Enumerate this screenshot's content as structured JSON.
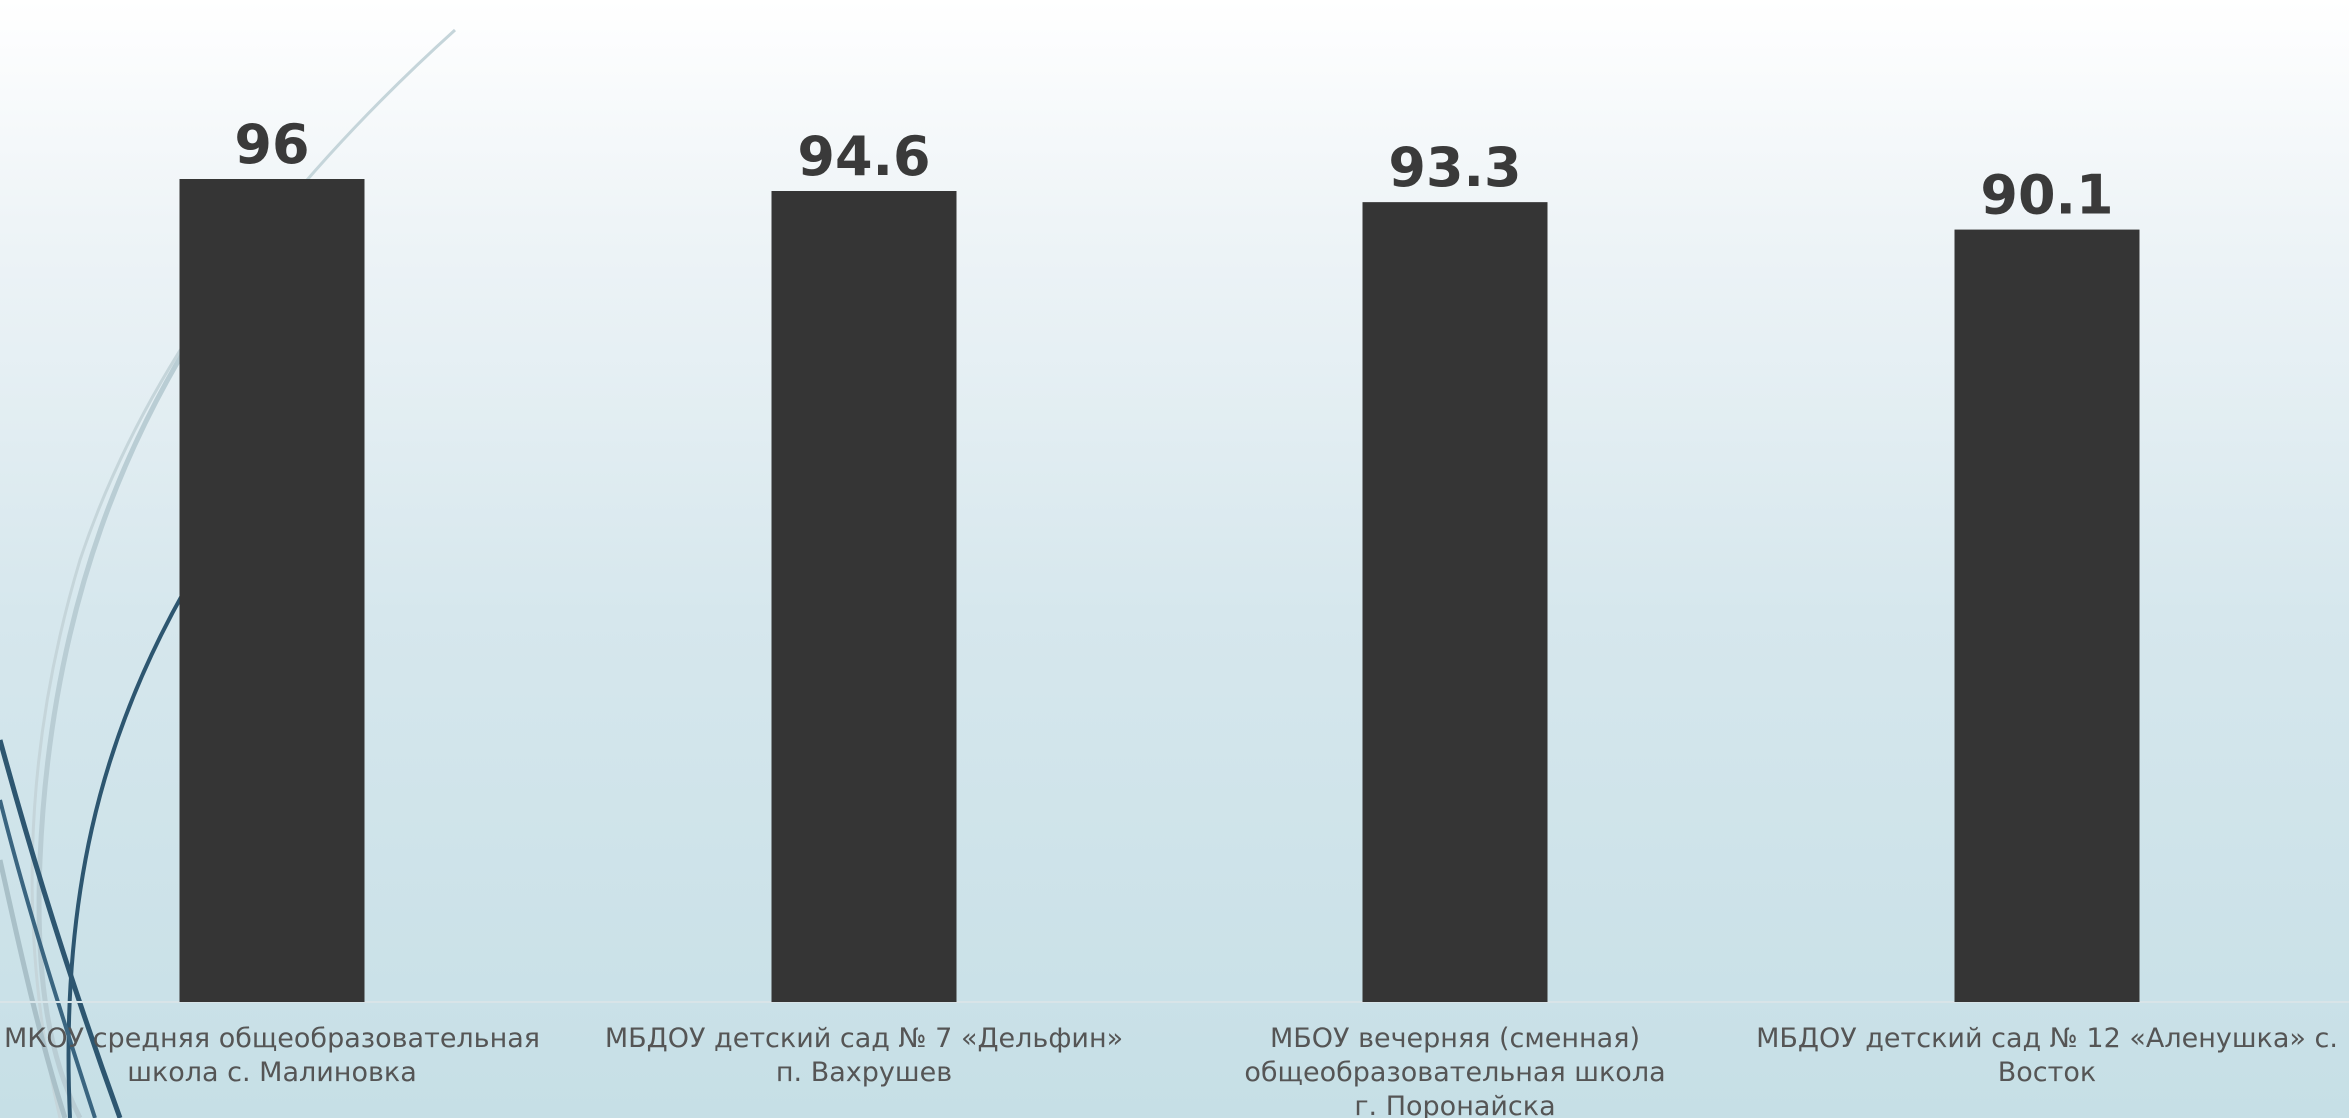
{
  "chart_data": {
    "type": "bar",
    "categories": [
      [
        "МКОУ средняя общеобразовательная",
        "школа с. Малиновка"
      ],
      [
        "МБДОУ детский сад № 7 «Дельфин»",
        "п. Вахрушев"
      ],
      [
        "МБОУ вечерняя (сменная)",
        "общеобразовательная школа",
        "г. Поронайска"
      ],
      [
        "МБДОУ детский сад № 12 «Аленушка» с.",
        "Восток"
      ]
    ],
    "values": [
      96,
      94.6,
      93.3,
      90.1
    ],
    "value_labels": [
      "96",
      "94.6",
      "93.3",
      "90.1"
    ],
    "ylim": [
      0,
      100
    ],
    "grid": false,
    "colors": {
      "bar": "#353535",
      "value_text": "#3a3a3a",
      "category_text": "#555555",
      "decor_dark": "#2d5670",
      "decor_light": "#b9cdd4"
    }
  }
}
